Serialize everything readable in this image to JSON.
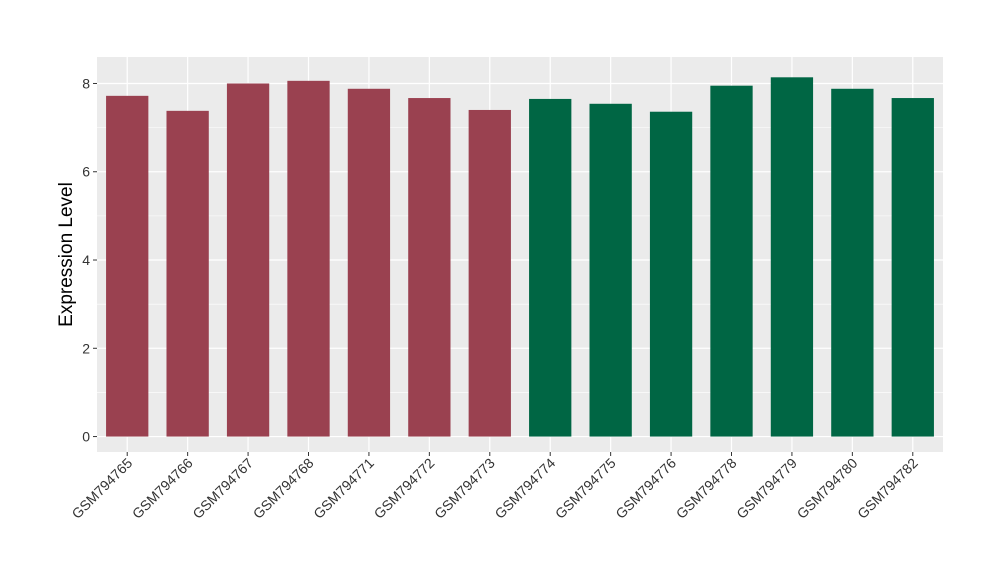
{
  "chart_data": {
    "type": "bar",
    "title": "",
    "xlabel": "",
    "ylabel": "Expression Level",
    "ylim": [
      -0.35,
      8.6
    ],
    "yticks": [
      0,
      2,
      4,
      6,
      8
    ],
    "grid": true,
    "legend": "none",
    "categories": [
      "GSM794765",
      "GSM794766",
      "GSM794767",
      "GSM794768",
      "GSM794771",
      "GSM794772",
      "GSM794773",
      "GSM794774",
      "GSM794775",
      "GSM794776",
      "GSM794778",
      "GSM794779",
      "GSM794780",
      "GSM794782"
    ],
    "values": [
      7.72,
      7.38,
      8.0,
      8.06,
      7.88,
      7.67,
      7.4,
      7.65,
      7.54,
      7.36,
      7.95,
      8.14,
      7.88,
      7.67
    ],
    "bar_colors": [
      "#9a4150",
      "#9a4150",
      "#9a4150",
      "#9a4150",
      "#9a4150",
      "#9a4150",
      "#9a4150",
      "#006644",
      "#006644",
      "#006644",
      "#006644",
      "#006644",
      "#006644",
      "#006644"
    ],
    "panel_background": "#ebebeb",
    "grid_color": "#ffffff"
  }
}
